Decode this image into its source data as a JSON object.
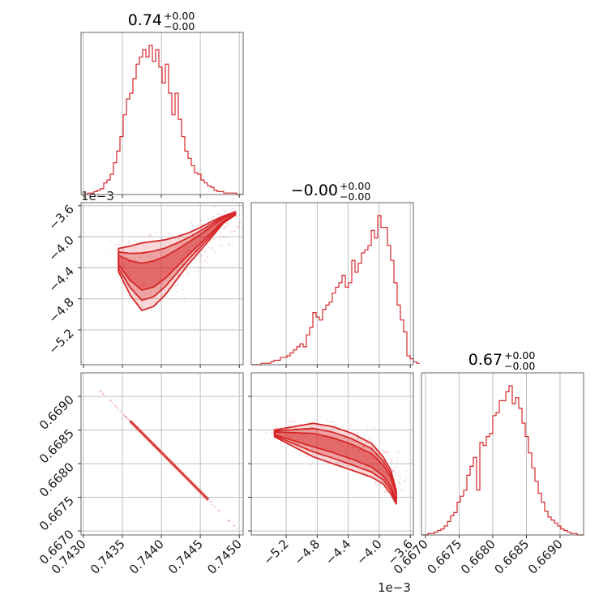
{
  "chart_data": {
    "type": "corner",
    "color": "#d62728",
    "grid": true,
    "parameters": [
      {
        "title_value": "0.74",
        "err_plus": "+0.00",
        "err_minus": "−0.00",
        "range": [
          0.74297,
          0.74505
        ],
        "ticks": [
          0.743,
          0.7435,
          0.744,
          0.7445,
          0.745
        ],
        "tick_labels": [
          "0.7430",
          "0.7435",
          "0.7440",
          "0.7445",
          "0.7450"
        ],
        "offset_label": ""
      },
      {
        "title_value": "−0.00",
        "err_plus": "+0.00",
        "err_minus": "−0.00",
        "range": [
          -5.65,
          -3.56
        ],
        "ticks": [
          -5.2,
          -4.8,
          -4.4,
          -4.0,
          -3.6
        ],
        "tick_labels": [
          "−5.2",
          "−4.8",
          "−4.4",
          "−4.0",
          "−3.6"
        ],
        "offset_label": "1e−3"
      },
      {
        "title_value": "0.67",
        "err_plus": "+0.00",
        "err_minus": "−0.00",
        "range": [
          0.66694,
          0.66935
        ],
        "ticks": [
          0.667,
          0.6675,
          0.668,
          0.6685,
          0.669
        ],
        "tick_labels": [
          "0.6670",
          "0.6675",
          "0.6680",
          "0.6685",
          "0.6690"
        ],
        "offset_label": ""
      }
    ],
    "histograms": [
      {
        "param": 0,
        "bin_start": 0.74297,
        "bin_width": 4.16e-05,
        "counts": [
          0,
          0,
          1,
          1,
          2,
          3,
          4,
          8,
          10,
          14,
          22,
          30,
          40,
          55,
          66,
          70,
          80,
          90,
          95,
          100,
          95,
          103,
          92,
          100,
          88,
          77,
          90,
          70,
          55,
          70,
          52,
          40,
          30,
          25,
          20,
          15,
          14,
          10,
          8,
          6,
          5,
          3,
          2,
          2,
          1,
          1,
          1,
          1,
          0,
          0
        ]
      },
      {
        "param": 1,
        "bin_start": -5.65,
        "bin_width": 0.0418,
        "counts": [
          0,
          0,
          0,
          1,
          1,
          1,
          2,
          3,
          3,
          5,
          5,
          6,
          8,
          10,
          12,
          14,
          12,
          20,
          25,
          35,
          32,
          30,
          37,
          40,
          42,
          48,
          52,
          55,
          60,
          52,
          55,
          70,
          62,
          68,
          75,
          77,
          80,
          90,
          85,
          100,
          92,
          92,
          80,
          70,
          55,
          40,
          30,
          22,
          6,
          4,
          2,
          1
        ]
      },
      {
        "param": 2,
        "bin_start": 0.66694,
        "bin_width": 4.82e-05,
        "counts": [
          0,
          0,
          1,
          1,
          2,
          3,
          4,
          6,
          9,
          13,
          15,
          22,
          26,
          30,
          40,
          46,
          52,
          30,
          62,
          60,
          66,
          68,
          80,
          82,
          90,
          90,
          96,
          100,
          88,
          92,
          85,
          75,
          66,
          55,
          45,
          36,
          28,
          22,
          16,
          12,
          10,
          8,
          6,
          4,
          3,
          2,
          1,
          1,
          0,
          0
        ]
      }
    ],
    "scatter_panels": [
      {
        "x_param": 0,
        "y_param": 1,
        "description_free": true,
        "ridge_x": [
          0.74345,
          0.7436,
          0.74375,
          0.7439,
          0.74405,
          0.7442,
          0.74435,
          0.7445,
          0.74465,
          0.7448,
          0.74495
        ],
        "ridge_y_upper": [
          -4.15,
          -4.12,
          -4.08,
          -4.06,
          -4.04,
          -4.0,
          -3.95,
          -3.88,
          -3.8,
          -3.73,
          -3.68
        ],
        "ridge_y_lower": [
          -4.45,
          -4.75,
          -4.95,
          -4.9,
          -4.75,
          -4.55,
          -4.35,
          -4.18,
          -4.0,
          -3.82,
          -3.72
        ]
      },
      {
        "x_param": 0,
        "y_param": 2,
        "ridge_x": [
          0.7432,
          0.745
        ],
        "ridge_y": [
          0.6691,
          0.667
        ]
      },
      {
        "x_param": 1,
        "y_param": 2,
        "ridge_x": [
          -5.35,
          -5.1,
          -4.85,
          -4.6,
          -4.35,
          -4.1,
          -3.95,
          -3.85,
          -3.78
        ],
        "ridge_y_upper": [
          0.6685,
          0.66855,
          0.6686,
          0.66855,
          0.66845,
          0.6683,
          0.6681,
          0.6679,
          0.6676
        ],
        "ridge_y_lower": [
          0.6684,
          0.66825,
          0.6681,
          0.668,
          0.6679,
          0.6678,
          0.6677,
          0.66755,
          0.6674
        ]
      }
    ]
  }
}
